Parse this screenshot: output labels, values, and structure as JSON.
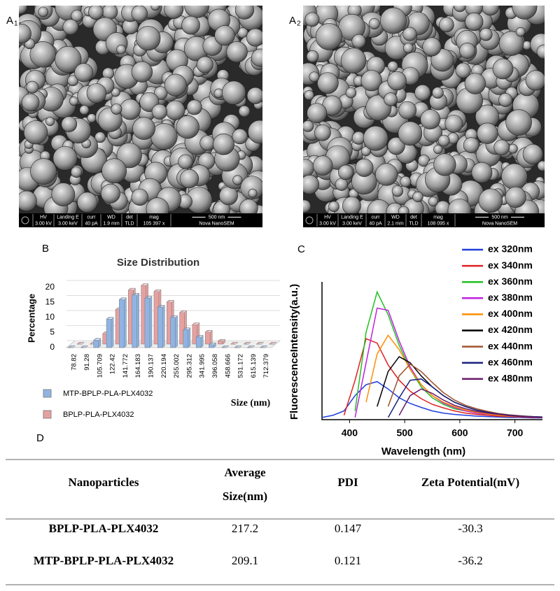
{
  "panels": [
    {
      "label": "A",
      "sub": "1",
      "info": [
        [
          "HV",
          "3.00 kV"
        ],
        [
          "Landing E",
          "3.00 keV"
        ],
        [
          "curr",
          "40 pA"
        ],
        [
          "WD",
          "1.9 mm"
        ],
        [
          "det",
          "TLD"
        ],
        [
          "mag",
          "105 397 x"
        ]
      ],
      "scale": "500 nm",
      "instrument": "Nova NanoSEM"
    },
    {
      "label": "A",
      "sub": "2",
      "info": [
        [
          "HV",
          "3.00 kV"
        ],
        [
          "Landing E",
          "3.00 keV"
        ],
        [
          "curr",
          "40 pA"
        ],
        [
          "WD",
          "2.1 mm"
        ],
        [
          "det",
          "TLD"
        ],
        [
          "mag",
          "108 095 x"
        ]
      ],
      "scale": "500 nm",
      "instrument": "Nova NanoSEM"
    }
  ],
  "labels": {
    "b": "B",
    "c": "C",
    "d": "D"
  },
  "chart_data": [
    {
      "type": "bar",
      "title": "Size Distribution",
      "y_label": "Percentage",
      "x_label": "Size (nm)",
      "categories": [
        "78.82",
        "91.28",
        "105.709",
        "122.42",
        "141.772",
        "164.183",
        "190.137",
        "220.194",
        "255.002",
        "295.312",
        "341.995",
        "396.058",
        "458.666",
        "531.172",
        "615.139",
        "712.379"
      ],
      "series": [
        {
          "name": "MTP-BPLP-PLA-PLX4032",
          "color": "#8fb4e3",
          "values": [
            0,
            0,
            2.5,
            9.5,
            16,
            17.5,
            16.5,
            13.5,
            10,
            6,
            3.5,
            1,
            0,
            0,
            0,
            0
          ]
        },
        {
          "name": "BPLP-PLA-PLX4032",
          "color": "#e6a0a0",
          "values": [
            0,
            0,
            3.5,
            11.5,
            18,
            19.5,
            17.5,
            14,
            10.5,
            6.5,
            4,
            1,
            0,
            0,
            0,
            0
          ]
        }
      ],
      "ylim": [
        0,
        20
      ],
      "yticks": [
        0,
        5,
        10,
        15,
        20
      ],
      "grid": true,
      "legend": "bottom-left"
    },
    {
      "type": "line",
      "x_label": "Wavelength (nm)",
      "y_label": "FluorescenceIntensity(a.u.)",
      "x": [
        350,
        370,
        390,
        410,
        430,
        450,
        470,
        490,
        510,
        530,
        550,
        570,
        590,
        610,
        630,
        650,
        670,
        690,
        710,
        730,
        750
      ],
      "series": [
        {
          "name": "ex 320nm",
          "color": "#1f3fdd",
          "values": [
            0.05,
            0.1,
            0.2,
            0.55,
            0.8,
            0.87,
            0.7,
            0.5,
            0.37,
            0.28,
            0.2,
            0.15,
            0.12,
            0.1,
            0.08,
            0.07,
            0.06,
            0.05,
            0.05,
            0.04,
            0.04
          ]
        },
        {
          "name": "ex 340nm",
          "color": "#e02020",
          "values": [
            null,
            null,
            0.1,
            0.9,
            1.85,
            1.75,
            1.25,
            0.9,
            0.65,
            0.48,
            0.35,
            0.27,
            0.2,
            0.15,
            0.12,
            0.1,
            0.08,
            0.07,
            0.06,
            0.05,
            0.05
          ]
        },
        {
          "name": "ex 360nm",
          "color": "#22c022",
          "values": [
            null,
            null,
            null,
            0.2,
            2.0,
            2.92,
            2.4,
            1.7,
            1.15,
            0.75,
            0.5,
            0.35,
            0.25,
            0.2,
            0.15,
            0.12,
            0.1,
            0.08,
            0.07,
            0.06,
            0.05
          ]
        },
        {
          "name": "ex 380nm",
          "color": "#c020e0",
          "values": [
            null,
            null,
            null,
            0.05,
            1.3,
            2.55,
            2.5,
            1.8,
            1.2,
            0.8,
            0.55,
            0.38,
            0.28,
            0.2,
            0.15,
            0.12,
            0.1,
            0.08,
            0.07,
            0.06,
            0.05
          ]
        },
        {
          "name": "ex 400nm",
          "color": "#ff8c00",
          "values": [
            null,
            null,
            null,
            null,
            0.4,
            1.5,
            1.93,
            1.6,
            1.15,
            0.8,
            0.55,
            0.4,
            0.3,
            0.22,
            0.17,
            0.13,
            0.1,
            0.08,
            0.07,
            0.06,
            0.05
          ]
        },
        {
          "name": "ex 420nm",
          "color": "#000000",
          "values": [
            null,
            null,
            null,
            null,
            null,
            0.3,
            1.1,
            1.44,
            1.3,
            1.0,
            0.75,
            0.55,
            0.4,
            0.3,
            0.22,
            0.17,
            0.13,
            0.1,
            0.08,
            0.07,
            0.06
          ]
        },
        {
          "name": "ex 440nm",
          "color": "#a0522d",
          "values": [
            null,
            null,
            null,
            null,
            null,
            null,
            0.3,
            1.0,
            1.27,
            1.1,
            0.85,
            0.62,
            0.45,
            0.33,
            0.25,
            0.19,
            0.14,
            0.11,
            0.09,
            0.07,
            0.06
          ]
        },
        {
          "name": "ex 460nm",
          "color": "#1a237e",
          "values": [
            null,
            null,
            null,
            null,
            null,
            null,
            0.05,
            0.5,
            0.9,
            0.93,
            0.75,
            0.55,
            0.4,
            0.3,
            0.22,
            0.17,
            0.13,
            0.1,
            0.08,
            0.07,
            0.06
          ]
        },
        {
          "name": "ex 480nm",
          "color": "#6a1b6a",
          "values": [
            null,
            null,
            null,
            null,
            null,
            null,
            null,
            0.1,
            0.55,
            0.7,
            0.6,
            0.45,
            0.33,
            0.25,
            0.19,
            0.15,
            0.12,
            0.09,
            0.07,
            0.06,
            0.05
          ]
        }
      ],
      "xlim": [
        350,
        750
      ],
      "xticks": [
        400,
        500,
        600,
        700
      ],
      "ylim": [
        0,
        3.15
      ],
      "legend": "top-right"
    }
  ],
  "table": {
    "header": [
      "Nanoparticles",
      "Average Size(nm)",
      "PDI",
      "Zeta Potential(mV)"
    ],
    "rows": [
      [
        "BPLP-PLA-PLX4032",
        "217.2",
        "0.147",
        "-30.3"
      ],
      [
        "MTP-BPLP-PLA-PLX4032",
        "209.1",
        "0.121",
        "-36.2"
      ]
    ]
  }
}
